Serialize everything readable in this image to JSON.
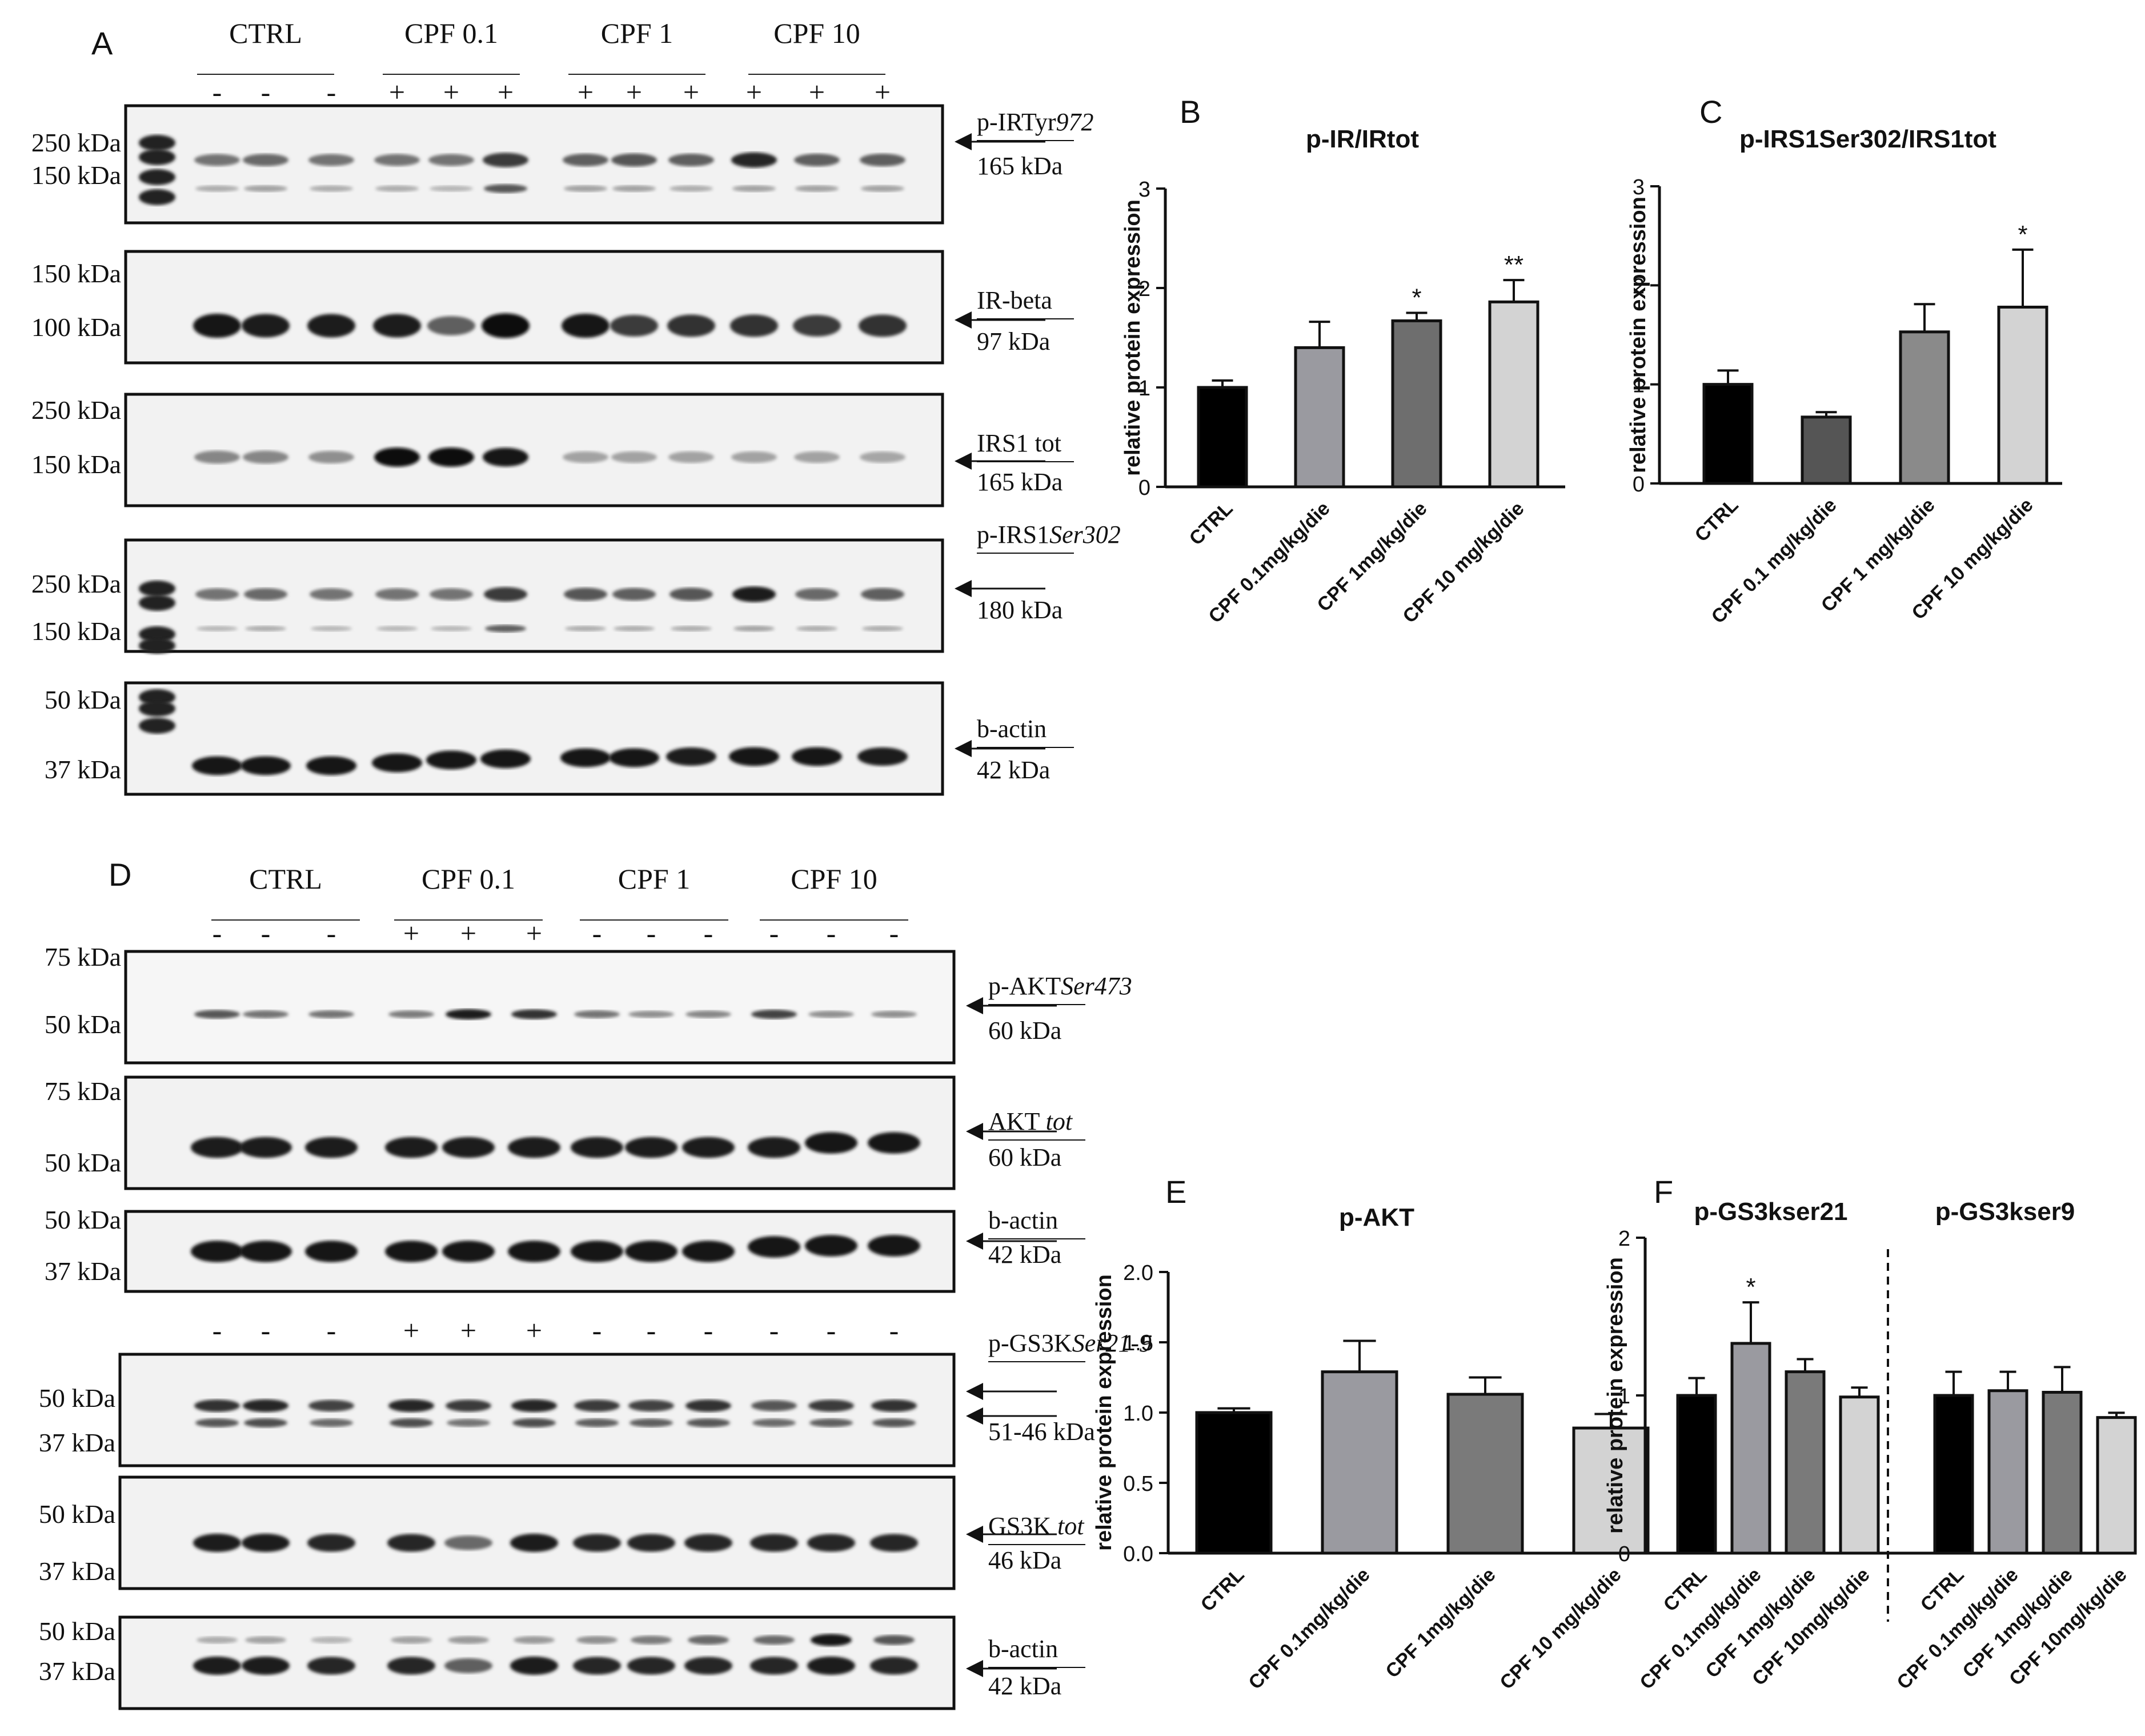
{
  "panels": {
    "A": {
      "letter": "A",
      "groups": [
        "CTRL",
        "CPF 0.1",
        "CPF 1",
        "CPF 10"
      ],
      "signs": [
        "-",
        "-",
        "-",
        "+",
        "+",
        "+",
        "+",
        "+",
        "+",
        "+",
        "+",
        "+"
      ],
      "blots": [
        {
          "left_markers": [
            "250 kDa",
            "150 kDa"
          ],
          "label_top": "p-IRTyr",
          "label_top_italic": "972",
          "label_bottom": "165 kDa"
        },
        {
          "left_markers": [
            "150 kDa",
            "100 kDa"
          ],
          "label_top": "IR-beta",
          "label_top_italic": "",
          "label_bottom": "97 kDa"
        },
        {
          "left_markers": [
            "250 kDa",
            "150 kDa"
          ],
          "label_top": "IRS1 tot",
          "label_top_italic": "",
          "label_bottom": "165 kDa"
        },
        {
          "left_markers": [
            "250 kDa",
            "150 kDa"
          ],
          "label_top": "p-IRS1",
          "label_top_italic": "Ser302",
          "label_bottom": "180 kDa"
        },
        {
          "left_markers": [
            "50 kDa",
            "37 kDa"
          ],
          "label_top": "b-actin",
          "label_top_italic": "",
          "label_bottom": "42 kDa"
        }
      ]
    },
    "D": {
      "letter": "D",
      "groups": [
        "CTRL",
        "CPF 0.1",
        "CPF 1",
        "CPF 10"
      ],
      "signs": [
        "-",
        "-",
        "-",
        "+",
        "+",
        "+",
        "-",
        "-",
        "-",
        "-",
        "-",
        "-"
      ],
      "signs2": [
        "-",
        "-",
        "-",
        "+",
        "+",
        "+",
        "-",
        "-",
        "-",
        "-",
        "-",
        "-"
      ],
      "blots": [
        {
          "left_markers": [
            "75 kDa",
            "50 kDa"
          ],
          "label_top": "p-AKT",
          "label_top_italic": "Ser473",
          "label_bottom": "60 kDa"
        },
        {
          "left_markers": [
            "75 kDa",
            "50 kDa"
          ],
          "label_top": "AKT ",
          "label_top_italic": "tot",
          "label_bottom": "60 kDa"
        },
        {
          "left_markers": [
            "50 kDa",
            "37 kDa"
          ],
          "label_top": "b-actin",
          "label_top_italic": "",
          "label_bottom": "42 kDa"
        },
        {
          "left_markers": [
            "50 kDa",
            "37 kDa"
          ],
          "label_top": "p-GS3K",
          "label_top_italic": "Ser21-9",
          "label_bottom": "51-46 kDa"
        },
        {
          "left_markers": [
            "50 kDa",
            "37 kDa"
          ],
          "label_top": "GS3K ",
          "label_top_italic": "tot",
          "label_bottom": "46 kDa"
        },
        {
          "left_markers": [
            "50 kDa",
            "37 kDa"
          ],
          "label_top": "b-actin",
          "label_top_italic": "",
          "label_bottom": "42 kDa"
        }
      ]
    }
  },
  "chart_data": [
    {
      "letter": "B",
      "type": "bar",
      "title": "p-IR/IRtot",
      "ylabel": "relative protein expression",
      "categories": [
        "CTRL",
        "CPF 0.1mg/kg/die",
        "CPF 1mg/kg/die",
        "CPF 10 mg/kg/die"
      ],
      "values": [
        1.0,
        1.4,
        1.67,
        1.86
      ],
      "errors": [
        0.07,
        0.26,
        0.08,
        0.22
      ],
      "significance": [
        "",
        "",
        "*",
        "**"
      ],
      "colors": [
        "#000000",
        "#9a9aa0",
        "#6e6e6e",
        "#d3d3d3"
      ],
      "ylim": [
        0,
        3
      ],
      "yticks": [
        "0",
        "1",
        "2",
        "3"
      ]
    },
    {
      "letter": "C",
      "type": "bar",
      "title": "p-IRS1Ser302/IRS1tot",
      "ylabel": "relative protein expression",
      "categories": [
        "CTRL",
        "CPF 0.1 mg/kg/die",
        "CPF 1 mg/kg/die",
        "CPF 10 mg/kg/die"
      ],
      "values": [
        1.0,
        0.67,
        1.53,
        1.78
      ],
      "errors": [
        0.14,
        0.05,
        0.28,
        0.58
      ],
      "significance": [
        "",
        "",
        "",
        "*"
      ],
      "colors": [
        "#000000",
        "#555555",
        "#8a8a8a",
        "#d3d3d3"
      ],
      "ylim": [
        0,
        3
      ],
      "yticks": [
        "0",
        "1",
        "2",
        "3"
      ]
    },
    {
      "letter": "E",
      "type": "bar",
      "title": "p-AKT",
      "ylabel": "relative protein expression",
      "categories": [
        "CTRL",
        "CPF 0.1mg/kg/die",
        "CPF 1mg/kg/die",
        "CPF 10 mg/kg/die"
      ],
      "values": [
        1.0,
        1.29,
        1.13,
        0.89
      ],
      "errors": [
        0.03,
        0.22,
        0.12,
        0.1
      ],
      "significance": [
        "",
        "",
        "",
        ""
      ],
      "colors": [
        "#000000",
        "#9a9aa0",
        "#7a7a7a",
        "#d3d3d3"
      ],
      "ylim": [
        0,
        2
      ],
      "yticks": [
        "0.0",
        "0.5",
        "1.0",
        "1.5",
        "2.0"
      ]
    },
    {
      "letter": "F",
      "type": "bar",
      "title": "p-GS3kser21",
      "title2": "p-GS3kser9",
      "ylabel": "relative protein expression",
      "categories": [
        "CTRL",
        "CPF 0.1mg/kg/die",
        "CPF 1mg/kg/die",
        "CPF 10mg/kg/die",
        "CTRL",
        "CPF 0.1mg/kg/die",
        "CPF 1mg/kg/die",
        "CPF 10mg/kg/die"
      ],
      "values": [
        1.0,
        1.33,
        1.15,
        0.99,
        1.0,
        1.03,
        1.02,
        0.86
      ],
      "errors": [
        0.11,
        0.26,
        0.08,
        0.06,
        0.15,
        0.12,
        0.16,
        0.03
      ],
      "significance": [
        "",
        "*",
        "",
        "",
        "",
        "",
        "",
        ""
      ],
      "colors": [
        "#000000",
        "#9a9aa0",
        "#7a7a7a",
        "#d3d3d3",
        "#000000",
        "#9a9aa0",
        "#7a7a7a",
        "#d3d3d3"
      ],
      "ylim": [
        0,
        2
      ],
      "yticks": [
        "0",
        "1",
        "2"
      ]
    }
  ]
}
